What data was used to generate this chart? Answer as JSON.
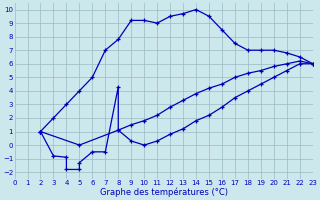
{
  "xlabel": "Graphe des températures (°C)",
  "xlim": [
    0,
    23
  ],
  "ylim": [
    -2.5,
    10.5
  ],
  "xticks": [
    0,
    1,
    2,
    3,
    4,
    5,
    6,
    7,
    8,
    9,
    10,
    11,
    12,
    13,
    14,
    15,
    16,
    17,
    18,
    19,
    20,
    21,
    22,
    23
  ],
  "yticks": [
    -2,
    -1,
    0,
    1,
    2,
    3,
    4,
    5,
    6,
    7,
    8,
    9,
    10
  ],
  "background_color": "#cce8ec",
  "line_color": "#0000bb",
  "grid_color": "#99bbc4",
  "line1_x": [
    2,
    3,
    4,
    5,
    6,
    7,
    8,
    9,
    10,
    11,
    12,
    13,
    14,
    15,
    16,
    17,
    18,
    19,
    20,
    21,
    22,
    23
  ],
  "line1_y": [
    1,
    2,
    3,
    4,
    5,
    7,
    7.8,
    9.2,
    9.2,
    9.0,
    9.5,
    9.7,
    10.0,
    9.5,
    8.5,
    7.5,
    7.0,
    7.0,
    7.0,
    6.8,
    6.5,
    6.0
  ],
  "line2_x": [
    2,
    3,
    4,
    4,
    5,
    5,
    6,
    7,
    8,
    8,
    9,
    10,
    11,
    12,
    13,
    14,
    15,
    16,
    17,
    18,
    19,
    20,
    21,
    22,
    23
  ],
  "line2_y": [
    1,
    -0.8,
    -0.9,
    -1.8,
    -1.8,
    -1.3,
    -0.5,
    -0.5,
    4.3,
    1.1,
    0.3,
    0.0,
    0.3,
    0.8,
    1.2,
    1.8,
    2.2,
    2.8,
    3.5,
    4.0,
    4.5,
    5.0,
    5.5,
    6.0,
    6.0
  ],
  "line3_x": [
    2,
    5,
    8,
    9,
    10,
    11,
    12,
    13,
    14,
    15,
    16,
    17,
    18,
    19,
    20,
    21,
    22,
    23
  ],
  "line3_y": [
    1,
    0.0,
    1.1,
    1.5,
    1.8,
    2.2,
    2.8,
    3.3,
    3.8,
    4.2,
    4.5,
    5.0,
    5.3,
    5.5,
    5.8,
    6.0,
    6.2,
    6.0
  ]
}
